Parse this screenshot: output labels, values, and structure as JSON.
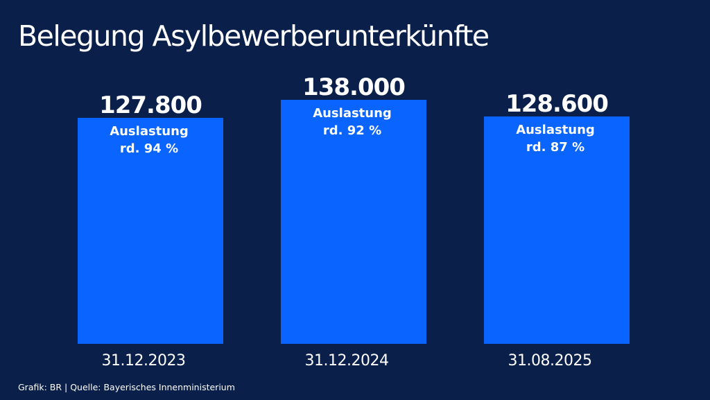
{
  "colors": {
    "background": "#0a1f4a",
    "bar": "#0a64ff",
    "text": "#ffffff"
  },
  "chart_data": {
    "type": "bar",
    "title": "Belegung Asylbewerberunterkünfte",
    "categories": [
      "31.12.2023",
      "31.12.2024",
      "31.08.2025"
    ],
    "values": [
      127800,
      138000,
      128600
    ],
    "value_labels": [
      "127.800",
      "138.000",
      "128.600"
    ],
    "annotations": [
      {
        "line1": "Auslastung",
        "line2": "rd. 94 %"
      },
      {
        "line1": "Auslastung",
        "line2": "rd. 92 %"
      },
      {
        "line1": "Auslastung",
        "line2": "rd. 87 %"
      }
    ],
    "xlabel": "",
    "ylabel": "",
    "ylim": [
      0,
      138000
    ],
    "grid": false,
    "legend": "none"
  },
  "footer": {
    "source": "Grafik: BR | Quelle: Bayerisches Innenministerium"
  }
}
